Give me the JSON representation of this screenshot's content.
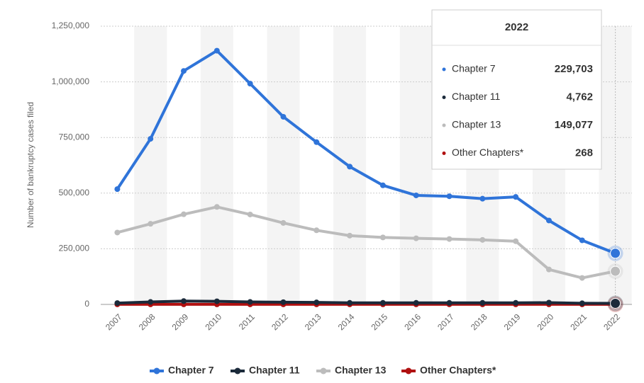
{
  "chart_data": {
    "type": "line",
    "y_label": "Number of bankruptcy cases filed",
    "categories": [
      "2007",
      "2008",
      "2009",
      "2010",
      "2011",
      "2012",
      "2013",
      "2014",
      "2015",
      "2016",
      "2017",
      "2018",
      "2019",
      "2020",
      "2021",
      "2022"
    ],
    "series": [
      {
        "name": "Chapter 7",
        "color": "#2f74d9",
        "values": [
          518000,
          744000,
          1049000,
          1140000,
          992000,
          843000,
          729000,
          619000,
          535000,
          490000,
          486000,
          475000,
          483000,
          377000,
          288000,
          229703
        ],
        "value_labels": [
          null,
          null,
          null,
          null,
          null,
          null,
          null,
          null,
          null,
          null,
          null,
          null,
          null,
          null,
          null,
          "229,703"
        ]
      },
      {
        "name": "Chapter 11",
        "color": "#1b2a3a",
        "values": [
          6000,
          11000,
          15000,
          14000,
          11000,
          10000,
          9000,
          7000,
          7000,
          7000,
          7000,
          7000,
          7000,
          8000,
          5000,
          4762
        ],
        "value_labels": [
          null,
          null,
          null,
          null,
          null,
          null,
          null,
          null,
          null,
          null,
          null,
          null,
          null,
          null,
          null,
          "4,762"
        ]
      },
      {
        "name": "Chapter 13",
        "color": "#bcbcbc",
        "values": [
          323000,
          362000,
          405000,
          438000,
          404000,
          366000,
          333000,
          309000,
          301000,
          297000,
          294000,
          290000,
          284000,
          157000,
          119000,
          149077
        ],
        "value_labels": [
          null,
          null,
          null,
          null,
          null,
          null,
          null,
          null,
          null,
          null,
          null,
          null,
          null,
          null,
          null,
          "149,077"
        ]
      },
      {
        "name": "Other Chapters*",
        "color": "#b01010",
        "values": [
          400,
          400,
          400,
          400,
          400,
          400,
          400,
          400,
          400,
          400,
          400,
          400,
          400,
          400,
          300,
          268
        ],
        "value_labels": [
          null,
          null,
          null,
          null,
          null,
          null,
          null,
          null,
          null,
          null,
          null,
          null,
          null,
          null,
          null,
          "268"
        ]
      }
    ],
    "ylim": [
      0,
      1250000
    ],
    "yticks": [
      0,
      {
        "value": 250000,
        "label": "250,000"
      },
      {
        "value": 500000,
        "label": "500,000"
      },
      {
        "value": 750000,
        "label": "750,000"
      },
      {
        "value": 1000000,
        "label": "1,000,000"
      },
      {
        "value": 1250000,
        "label": "1,250,000"
      }
    ],
    "grid": true
  }
}
